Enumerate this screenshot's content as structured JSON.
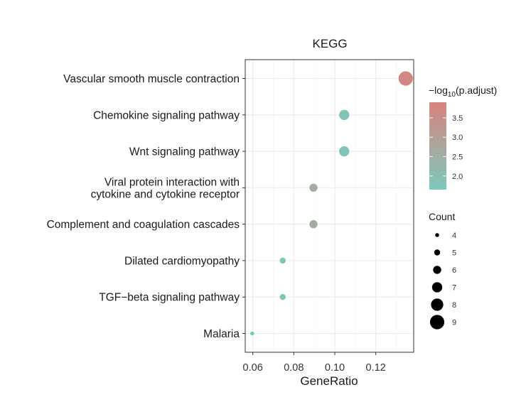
{
  "chart_data": {
    "type": "scatter",
    "title": "KEGG",
    "xlabel": "GeneRatio",
    "ylabel": "",
    "xlim": [
      0.0563,
      0.1385
    ],
    "x_ticks": [
      0.06,
      0.08,
      0.1,
      0.12
    ],
    "x_tick_labels": [
      "0.06",
      "0.08",
      "0.10",
      "0.12"
    ],
    "grid": true,
    "categories": [
      [
        "Vascular smooth muscle contraction"
      ],
      [
        "Chemokine signaling pathway"
      ],
      [
        "Wnt signaling pathway"
      ],
      [
        "Viral protein interaction with",
        "cytokine and cytokine receptor"
      ],
      [
        "Complement and coagulation cascades"
      ],
      [
        "Dilated cardiomyopathy"
      ],
      [
        "TGF−beta signaling pathway"
      ],
      [
        "Malaria"
      ]
    ],
    "points": [
      {
        "gene_ratio": 0.1346,
        "count": 9,
        "neg_log10_padj": 3.75
      },
      {
        "gene_ratio": 0.1046,
        "count": 7,
        "neg_log10_padj": 1.8
      },
      {
        "gene_ratio": 0.1046,
        "count": 7,
        "neg_log10_padj": 1.8
      },
      {
        "gene_ratio": 0.0896,
        "count": 6,
        "neg_log10_padj": 2.55
      },
      {
        "gene_ratio": 0.0896,
        "count": 6,
        "neg_log10_padj": 2.6
      },
      {
        "gene_ratio": 0.0746,
        "count": 5,
        "neg_log10_padj": 1.75
      },
      {
        "gene_ratio": 0.0746,
        "count": 5,
        "neg_log10_padj": 1.75
      },
      {
        "gene_ratio": 0.0597,
        "count": 4,
        "neg_log10_padj": 1.7
      }
    ],
    "color_legend": {
      "title_prefix": "−log",
      "title_sub": "10",
      "title_suffix": "(p.adjust)",
      "range": [
        1.65,
        3.9
      ],
      "breaks": [
        2.0,
        2.5,
        3.0,
        3.5
      ],
      "break_labels": [
        "2.0",
        "2.5",
        "3.0",
        "3.5"
      ],
      "low_color": "#7cc8bc",
      "high_color": "#d9827e"
    },
    "size_legend": {
      "title": "Count",
      "breaks": [
        4,
        5,
        6,
        7,
        8,
        9
      ],
      "break_labels": [
        "4",
        "5",
        "6",
        "7",
        "8",
        "9"
      ]
    }
  }
}
